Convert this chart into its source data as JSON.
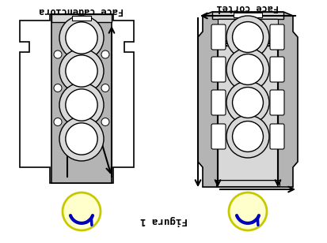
{
  "title": "Figura 1",
  "label_left": "Face cadenciora",
  "label_right": "Face cortei",
  "bg_color": "#ffffff",
  "gray_color": "#b4b4b4",
  "light_gray": "#d8d8d8",
  "arrow_color": "#000000",
  "circle_fill": "#ffffcc",
  "circle_edge": "#c8c800",
  "blue_color": "#0000bb",
  "fig_width": 4.14,
  "fig_height": 3.08,
  "dpi": 100
}
